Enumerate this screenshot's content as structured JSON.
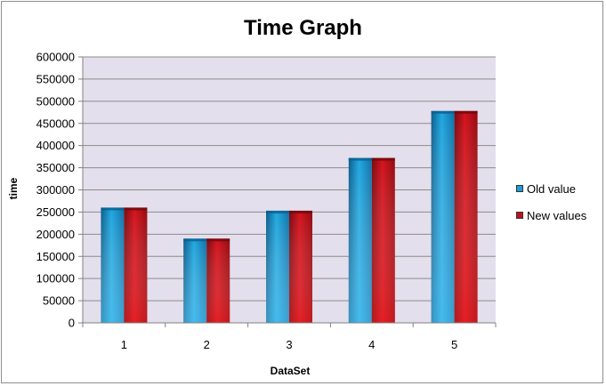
{
  "chart_data": {
    "type": "bar",
    "title": "Time Graph",
    "xlabel": "DataSet",
    "ylabel": "time",
    "categories": [
      "1",
      "2",
      "3",
      "4",
      "5"
    ],
    "series": [
      {
        "name": "Old value",
        "values": [
          260000,
          190000,
          253000,
          372000,
          478000
        ],
        "color": "#1e9cd4"
      },
      {
        "name": "New values",
        "values": [
          260000,
          190000,
          253000,
          372000,
          478000
        ],
        "color": "#c0101a"
      }
    ],
    "ylim": [
      0,
      600000
    ],
    "yticks": [
      "0",
      "50000",
      "100000",
      "150000",
      "200000",
      "250000",
      "300000",
      "350000",
      "400000",
      "450000",
      "500000",
      "550000",
      "600000"
    ],
    "grid": true,
    "plot_background": "#e4dfec",
    "legend_position": "right"
  }
}
